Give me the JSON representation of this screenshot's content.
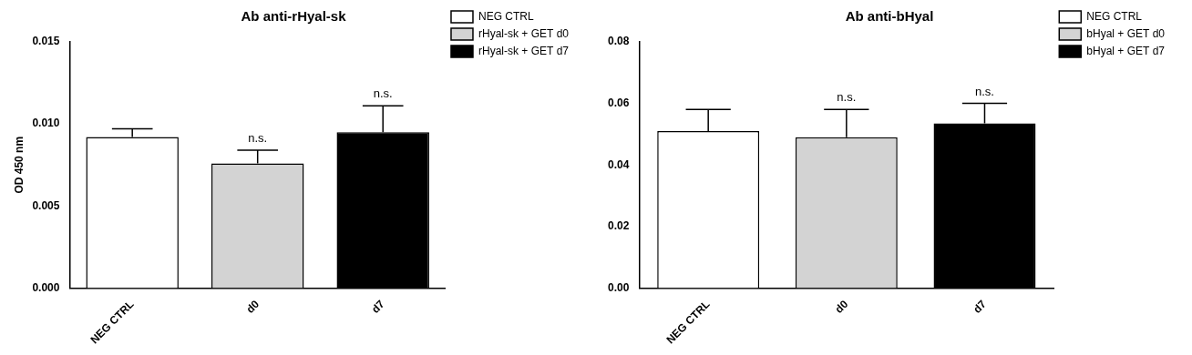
{
  "chart_data": [
    {
      "type": "bar",
      "title": "Ab anti-rHyal-sk",
      "y_label": "OD 450 nm",
      "categories": [
        "NEG CTRL",
        "d0",
        "d7"
      ],
      "series": [
        {
          "name": "NEG CTRL",
          "color": "#ffffff",
          "values": [
            0.0092,
            null,
            null
          ],
          "errors": [
            0.0005,
            null,
            null
          ]
        },
        {
          "name": "rHyal-sk + GET d0",
          "color": "#d3d3d3",
          "values": [
            null,
            0.0076,
            null
          ],
          "errors": [
            null,
            0.0008,
            null
          ]
        },
        {
          "name": "rHyal-sk + GET d7",
          "color": "#000000",
          "values": [
            null,
            null,
            0.0095
          ],
          "errors": [
            null,
            null,
            0.0016
          ]
        }
      ],
      "ylim": [
        0,
        0.015
      ],
      "yticks": [
        {
          "value": 0,
          "label": "0.000"
        },
        {
          "value": 0.005,
          "label": "0.005"
        },
        {
          "value": 0.01,
          "label": "0.010"
        },
        {
          "value": 0.015,
          "label": "0.015"
        }
      ],
      "grid": false,
      "legend": "right",
      "annotations": [
        {
          "category": "d0",
          "text": "n.s."
        },
        {
          "category": "d7",
          "text": "n.s."
        }
      ]
    },
    {
      "type": "bar",
      "title": "Ab anti-bHyal",
      "categories": [
        "NEG CTRL",
        "d0",
        "d7"
      ],
      "series": [
        {
          "name": "NEG CTRL",
          "color": "#ffffff",
          "values": [
            0.051,
            null,
            null
          ],
          "errors": [
            0.007,
            null,
            null
          ]
        },
        {
          "name": "bHyal + GET d0",
          "color": "#d3d3d3",
          "values": [
            null,
            0.049,
            null
          ],
          "errors": [
            null,
            0.009,
            null
          ]
        },
        {
          "name": "bHyal + GET d7",
          "color": "#000000",
          "values": [
            null,
            null,
            0.0535
          ],
          "errors": [
            null,
            null,
            0.0065
          ]
        }
      ],
      "ylim": [
        0,
        0.08
      ],
      "yticks": [
        {
          "value": 0,
          "label": "0.00"
        },
        {
          "value": 0.02,
          "label": "0.02"
        },
        {
          "value": 0.04,
          "label": "0.04"
        },
        {
          "value": 0.06,
          "label": "0.06"
        },
        {
          "value": 0.08,
          "label": "0.08"
        }
      ],
      "grid": false,
      "legend": "right",
      "annotations": [
        {
          "category": "d0",
          "text": "n.s."
        },
        {
          "category": "d7",
          "text": "n.s."
        }
      ]
    }
  ]
}
